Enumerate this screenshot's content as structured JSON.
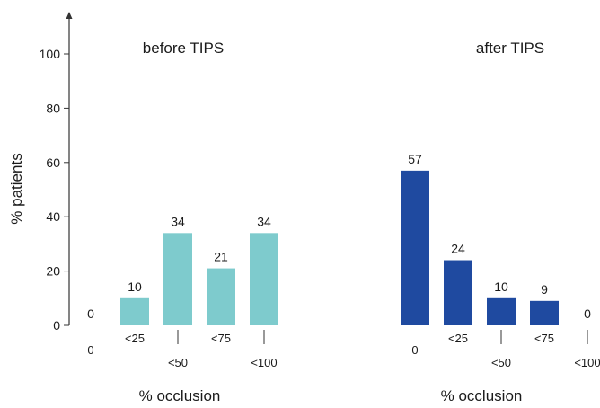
{
  "chart_data": {
    "type": "bar",
    "ylabel": "% patients",
    "ylim": [
      0,
      110
    ],
    "yticks": [
      0,
      20,
      40,
      60,
      80,
      100
    ],
    "grid": false,
    "legend": "none",
    "groups": [
      {
        "title": "before TIPS",
        "xlabel": "% occlusion",
        "color": "#7ecbcd",
        "categories": [
          "0",
          "<25",
          "<50",
          "<75",
          "<100"
        ],
        "values": [
          0,
          10,
          34,
          21,
          34
        ],
        "labels": [
          "0",
          "10",
          "34",
          "21",
          "34"
        ]
      },
      {
        "title": "after TIPS",
        "xlabel": "% occlusion",
        "color": "#1f4aa0",
        "categories": [
          "0",
          "<25",
          "<50",
          "<75",
          "<100"
        ],
        "values": [
          57,
          24,
          10,
          9,
          0
        ],
        "labels": [
          "57",
          "24",
          "10",
          "9",
          "0"
        ]
      }
    ]
  }
}
